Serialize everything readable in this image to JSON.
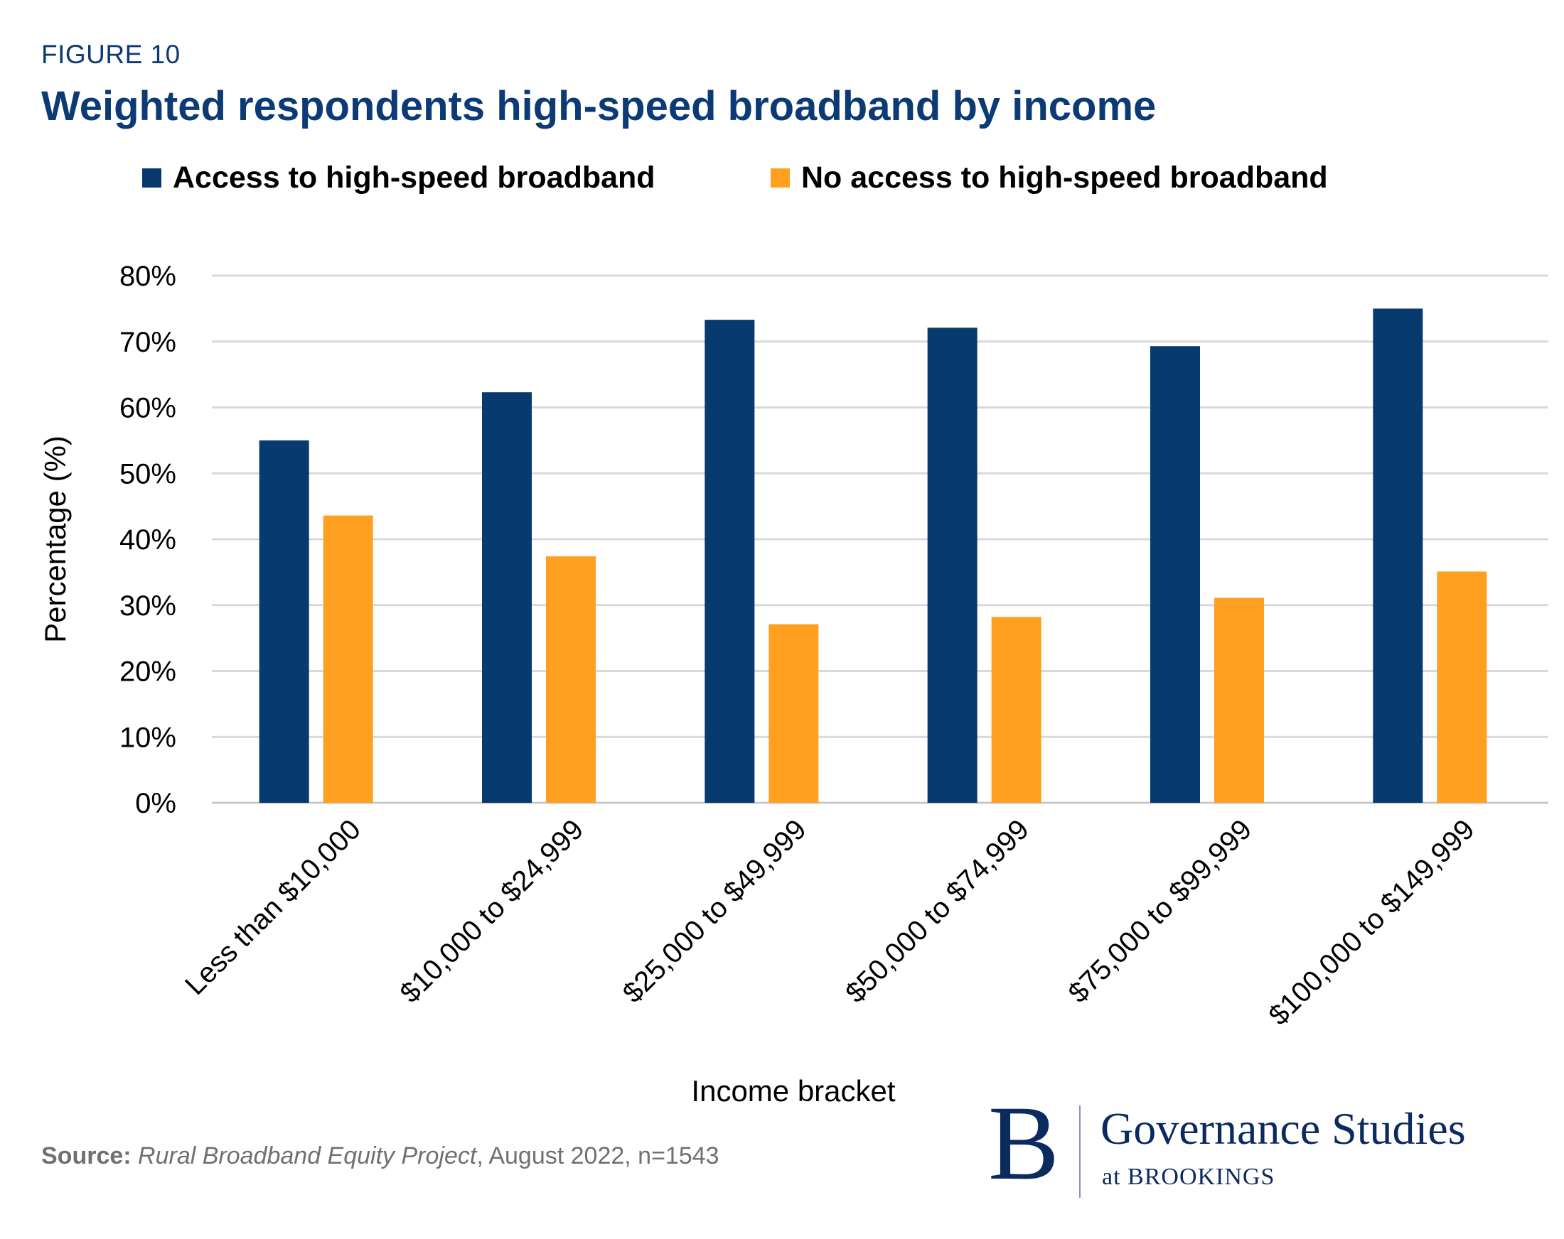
{
  "figure_label": "FIGURE 10",
  "title": "Weighted respondents high-speed broadband by income",
  "colors": {
    "access": "#073a6f",
    "no_access": "#ffa020",
    "title": "#0b3a74",
    "grid": "#d9d9d9"
  },
  "legend": [
    {
      "label": "Access to high-speed broadband",
      "color": "#073a6f"
    },
    {
      "label": "No access to high-speed broadband",
      "color": "#ffa020"
    }
  ],
  "chart_data": {
    "type": "bar",
    "categories": [
      "Less than $10,000",
      "$10,000 to $24,999",
      "$25,000 to $49,999",
      "$50,000 to $74,999",
      "$75,000 to $99,999",
      "$100,000 to $149,999"
    ],
    "series": [
      {
        "name": "Access to high-speed broadband",
        "values": [
          55,
          62.3,
          73.3,
          72.1,
          69.3,
          75
        ]
      },
      {
        "name": "No access to high-speed broadband",
        "values": [
          43.6,
          37.4,
          27.1,
          28.2,
          31.1,
          35.1
        ]
      }
    ],
    "xlabel": "Income bracket",
    "ylabel": "Percentage (%)",
    "ylim": [
      0,
      80
    ],
    "yticks": [
      "0%",
      "10%",
      "20%",
      "30%",
      "40%",
      "50%",
      "60%",
      "70%",
      "80%"
    ],
    "grid": true,
    "legend_position": "top"
  },
  "source": {
    "label": "Source:",
    "title": "Rural Broadband Equity Project",
    "rest": ", August 2022, n=1543"
  },
  "logo": {
    "letter": "B",
    "name": "Governance Studies",
    "sub": "at BROOKINGS"
  }
}
